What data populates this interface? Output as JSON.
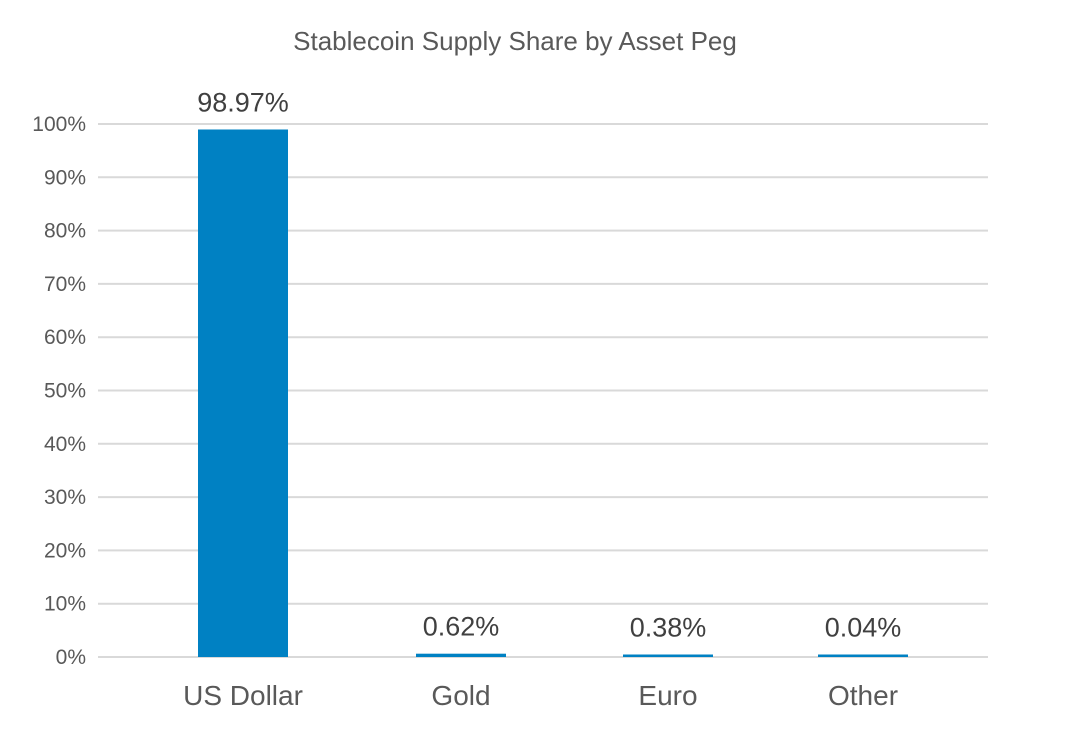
{
  "chart_data": {
    "type": "bar",
    "title": "Stablecoin Supply Share by Asset Peg",
    "xlabel": "",
    "ylabel": "",
    "categories": [
      "US Dollar",
      "Gold",
      "Euro",
      "Other"
    ],
    "values": [
      98.97,
      0.62,
      0.38,
      0.04
    ],
    "data_labels": [
      "98.97%",
      "0.62%",
      "0.38%",
      "0.04%"
    ],
    "ylim": [
      0,
      100
    ],
    "yticks": [
      0,
      10,
      20,
      30,
      40,
      50,
      60,
      70,
      80,
      90,
      100
    ],
    "ytick_labels": [
      "0%",
      "10%",
      "20%",
      "30%",
      "40%",
      "50%",
      "60%",
      "70%",
      "80%",
      "90%",
      "100%"
    ],
    "grid": true,
    "legend": "none",
    "bar_color": "#0081c3",
    "grid_color": "#d9d9d9"
  }
}
